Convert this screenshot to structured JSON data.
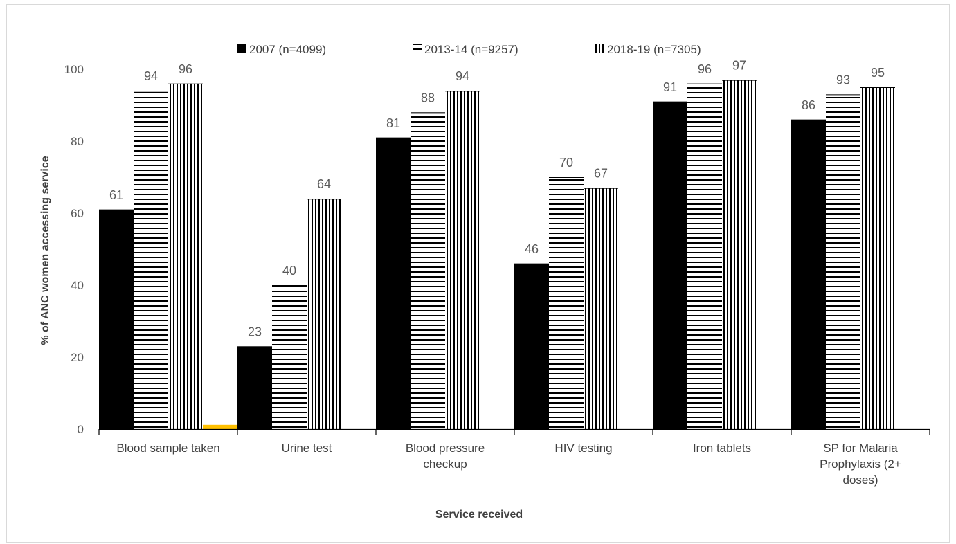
{
  "chart_data": {
    "type": "bar",
    "title": "",
    "xlabel": "Service received",
    "ylabel": "% of ANC women accessing service",
    "ylim": [
      0,
      100
    ],
    "yticks": [
      "0",
      "20",
      "40",
      "60",
      "80",
      "100"
    ],
    "categories": [
      [
        "Blood sample taken"
      ],
      [
        "Urine test"
      ],
      [
        "Blood pressure",
        "checkup"
      ],
      [
        "HIV testing"
      ],
      [
        "Iron tablets"
      ],
      [
        "SP for Malaria",
        "Prophylaxis (2+",
        "doses)"
      ]
    ],
    "series": [
      {
        "name": "2007 (n=4099)",
        "pattern": "solid",
        "color": "#000000",
        "values": [
          61,
          23,
          81,
          46,
          91,
          86
        ]
      },
      {
        "name": "2013-14 (n=9257)",
        "pattern": "horizontal",
        "color": "#000000",
        "values": [
          94,
          40,
          88,
          70,
          96,
          93
        ]
      },
      {
        "name": "2018-19 (n=7305)",
        "pattern": "vertical",
        "color": "#000000",
        "values": [
          96,
          64,
          94,
          67,
          97,
          95
        ]
      }
    ],
    "artifact_bar": {
      "category_index": 0,
      "value": 1,
      "color": "#ffc000"
    },
    "legend_position": "top",
    "grid": false
  }
}
